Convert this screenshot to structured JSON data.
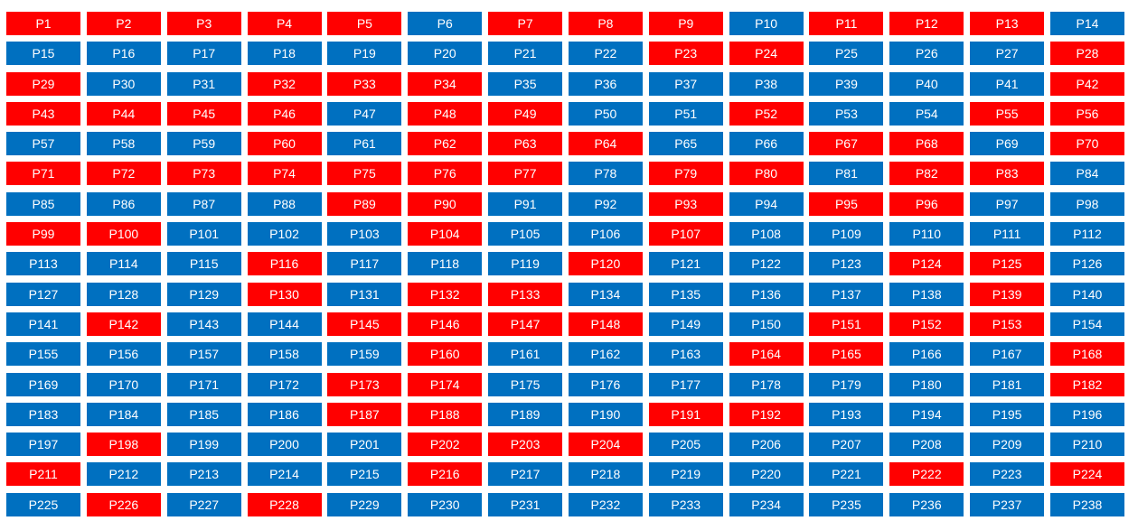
{
  "colors": {
    "red": "#ff0000",
    "blue": "#0070c0",
    "text": "#ffffff"
  },
  "cells": [
    {
      "label": "P1",
      "color": "red"
    },
    {
      "label": "P2",
      "color": "red"
    },
    {
      "label": "P3",
      "color": "red"
    },
    {
      "label": "P4",
      "color": "red"
    },
    {
      "label": "P5",
      "color": "red"
    },
    {
      "label": "P6",
      "color": "blue"
    },
    {
      "label": "P7",
      "color": "red"
    },
    {
      "label": "P8",
      "color": "red"
    },
    {
      "label": "P9",
      "color": "red"
    },
    {
      "label": "P10",
      "color": "blue"
    },
    {
      "label": "P11",
      "color": "red"
    },
    {
      "label": "P12",
      "color": "red"
    },
    {
      "label": "P13",
      "color": "red"
    },
    {
      "label": "P14",
      "color": "blue"
    },
    {
      "label": "P15",
      "color": "blue"
    },
    {
      "label": "P16",
      "color": "blue"
    },
    {
      "label": "P17",
      "color": "blue"
    },
    {
      "label": "P18",
      "color": "blue"
    },
    {
      "label": "P19",
      "color": "blue"
    },
    {
      "label": "P20",
      "color": "blue"
    },
    {
      "label": "P21",
      "color": "blue"
    },
    {
      "label": "P22",
      "color": "blue"
    },
    {
      "label": "P23",
      "color": "red"
    },
    {
      "label": "P24",
      "color": "red"
    },
    {
      "label": "P25",
      "color": "blue"
    },
    {
      "label": "P26",
      "color": "blue"
    },
    {
      "label": "P27",
      "color": "blue"
    },
    {
      "label": "P28",
      "color": "red"
    },
    {
      "label": "P29",
      "color": "red"
    },
    {
      "label": "P30",
      "color": "blue"
    },
    {
      "label": "P31",
      "color": "blue"
    },
    {
      "label": "P32",
      "color": "red"
    },
    {
      "label": "P33",
      "color": "red"
    },
    {
      "label": "P34",
      "color": "red"
    },
    {
      "label": "P35",
      "color": "blue"
    },
    {
      "label": "P36",
      "color": "blue"
    },
    {
      "label": "P37",
      "color": "blue"
    },
    {
      "label": "P38",
      "color": "blue"
    },
    {
      "label": "P39",
      "color": "blue"
    },
    {
      "label": "P40",
      "color": "blue"
    },
    {
      "label": "P41",
      "color": "blue"
    },
    {
      "label": "P42",
      "color": "red"
    },
    {
      "label": "P43",
      "color": "red"
    },
    {
      "label": "P44",
      "color": "red"
    },
    {
      "label": "P45",
      "color": "red"
    },
    {
      "label": "P46",
      "color": "red"
    },
    {
      "label": "P47",
      "color": "blue"
    },
    {
      "label": "P48",
      "color": "red"
    },
    {
      "label": "P49",
      "color": "red"
    },
    {
      "label": "P50",
      "color": "blue"
    },
    {
      "label": "P51",
      "color": "blue"
    },
    {
      "label": "P52",
      "color": "red"
    },
    {
      "label": "P53",
      "color": "blue"
    },
    {
      "label": "P54",
      "color": "blue"
    },
    {
      "label": "P55",
      "color": "red"
    },
    {
      "label": "P56",
      "color": "red"
    },
    {
      "label": "P57",
      "color": "blue"
    },
    {
      "label": "P58",
      "color": "blue"
    },
    {
      "label": "P59",
      "color": "blue"
    },
    {
      "label": "P60",
      "color": "red"
    },
    {
      "label": "P61",
      "color": "blue"
    },
    {
      "label": "P62",
      "color": "red"
    },
    {
      "label": "P63",
      "color": "red"
    },
    {
      "label": "P64",
      "color": "red"
    },
    {
      "label": "P65",
      "color": "blue"
    },
    {
      "label": "P66",
      "color": "blue"
    },
    {
      "label": "P67",
      "color": "red"
    },
    {
      "label": "P68",
      "color": "red"
    },
    {
      "label": "P69",
      "color": "blue"
    },
    {
      "label": "P70",
      "color": "red"
    },
    {
      "label": "P71",
      "color": "red"
    },
    {
      "label": "P72",
      "color": "red"
    },
    {
      "label": "P73",
      "color": "red"
    },
    {
      "label": "P74",
      "color": "red"
    },
    {
      "label": "P75",
      "color": "red"
    },
    {
      "label": "P76",
      "color": "red"
    },
    {
      "label": "P77",
      "color": "red"
    },
    {
      "label": "P78",
      "color": "blue"
    },
    {
      "label": "P79",
      "color": "red"
    },
    {
      "label": "P80",
      "color": "red"
    },
    {
      "label": "P81",
      "color": "blue"
    },
    {
      "label": "P82",
      "color": "red"
    },
    {
      "label": "P83",
      "color": "red"
    },
    {
      "label": "P84",
      "color": "blue"
    },
    {
      "label": "P85",
      "color": "blue"
    },
    {
      "label": "P86",
      "color": "blue"
    },
    {
      "label": "P87",
      "color": "blue"
    },
    {
      "label": "P88",
      "color": "blue"
    },
    {
      "label": "P89",
      "color": "red"
    },
    {
      "label": "P90",
      "color": "red"
    },
    {
      "label": "P91",
      "color": "blue"
    },
    {
      "label": "P92",
      "color": "blue"
    },
    {
      "label": "P93",
      "color": "red"
    },
    {
      "label": "P94",
      "color": "blue"
    },
    {
      "label": "P95",
      "color": "red"
    },
    {
      "label": "P96",
      "color": "red"
    },
    {
      "label": "P97",
      "color": "blue"
    },
    {
      "label": "P98",
      "color": "blue"
    },
    {
      "label": "P99",
      "color": "red"
    },
    {
      "label": "P100",
      "color": "red"
    },
    {
      "label": "P101",
      "color": "blue"
    },
    {
      "label": "P102",
      "color": "blue"
    },
    {
      "label": "P103",
      "color": "blue"
    },
    {
      "label": "P104",
      "color": "red"
    },
    {
      "label": "P105",
      "color": "blue"
    },
    {
      "label": "P106",
      "color": "blue"
    },
    {
      "label": "P107",
      "color": "red"
    },
    {
      "label": "P108",
      "color": "blue"
    },
    {
      "label": "P109",
      "color": "blue"
    },
    {
      "label": "P110",
      "color": "blue"
    },
    {
      "label": "P111",
      "color": "blue"
    },
    {
      "label": "P112",
      "color": "blue"
    },
    {
      "label": "P113",
      "color": "blue"
    },
    {
      "label": "P114",
      "color": "blue"
    },
    {
      "label": "P115",
      "color": "blue"
    },
    {
      "label": "P116",
      "color": "red"
    },
    {
      "label": "P117",
      "color": "blue"
    },
    {
      "label": "P118",
      "color": "blue"
    },
    {
      "label": "P119",
      "color": "blue"
    },
    {
      "label": "P120",
      "color": "red"
    },
    {
      "label": "P121",
      "color": "blue"
    },
    {
      "label": "P122",
      "color": "blue"
    },
    {
      "label": "P123",
      "color": "blue"
    },
    {
      "label": "P124",
      "color": "red"
    },
    {
      "label": "P125",
      "color": "red"
    },
    {
      "label": "P126",
      "color": "blue"
    },
    {
      "label": "P127",
      "color": "blue"
    },
    {
      "label": "P128",
      "color": "blue"
    },
    {
      "label": "P129",
      "color": "blue"
    },
    {
      "label": "P130",
      "color": "red"
    },
    {
      "label": "P131",
      "color": "blue"
    },
    {
      "label": "P132",
      "color": "red"
    },
    {
      "label": "P133",
      "color": "red"
    },
    {
      "label": "P134",
      "color": "blue"
    },
    {
      "label": "P135",
      "color": "blue"
    },
    {
      "label": "P136",
      "color": "blue"
    },
    {
      "label": "P137",
      "color": "blue"
    },
    {
      "label": "P138",
      "color": "blue"
    },
    {
      "label": "P139",
      "color": "red"
    },
    {
      "label": "P140",
      "color": "blue"
    },
    {
      "label": "P141",
      "color": "blue"
    },
    {
      "label": "P142",
      "color": "red"
    },
    {
      "label": "P143",
      "color": "blue"
    },
    {
      "label": "P144",
      "color": "blue"
    },
    {
      "label": "P145",
      "color": "red"
    },
    {
      "label": "P146",
      "color": "red"
    },
    {
      "label": "P147",
      "color": "red"
    },
    {
      "label": "P148",
      "color": "red"
    },
    {
      "label": "P149",
      "color": "blue"
    },
    {
      "label": "P150",
      "color": "blue"
    },
    {
      "label": "P151",
      "color": "red"
    },
    {
      "label": "P152",
      "color": "red"
    },
    {
      "label": "P153",
      "color": "red"
    },
    {
      "label": "P154",
      "color": "blue"
    },
    {
      "label": "P155",
      "color": "blue"
    },
    {
      "label": "P156",
      "color": "blue"
    },
    {
      "label": "P157",
      "color": "blue"
    },
    {
      "label": "P158",
      "color": "blue"
    },
    {
      "label": "P159",
      "color": "blue"
    },
    {
      "label": "P160",
      "color": "red"
    },
    {
      "label": "P161",
      "color": "blue"
    },
    {
      "label": "P162",
      "color": "blue"
    },
    {
      "label": "P163",
      "color": "blue"
    },
    {
      "label": "P164",
      "color": "red"
    },
    {
      "label": "P165",
      "color": "red"
    },
    {
      "label": "P166",
      "color": "blue"
    },
    {
      "label": "P167",
      "color": "blue"
    },
    {
      "label": "P168",
      "color": "red"
    },
    {
      "label": "P169",
      "color": "blue"
    },
    {
      "label": "P170",
      "color": "blue"
    },
    {
      "label": "P171",
      "color": "blue"
    },
    {
      "label": "P172",
      "color": "blue"
    },
    {
      "label": "P173",
      "color": "red"
    },
    {
      "label": "P174",
      "color": "red"
    },
    {
      "label": "P175",
      "color": "blue"
    },
    {
      "label": "P176",
      "color": "blue"
    },
    {
      "label": "P177",
      "color": "blue"
    },
    {
      "label": "P178",
      "color": "blue"
    },
    {
      "label": "P179",
      "color": "blue"
    },
    {
      "label": "P180",
      "color": "blue"
    },
    {
      "label": "P181",
      "color": "blue"
    },
    {
      "label": "P182",
      "color": "red"
    },
    {
      "label": "P183",
      "color": "blue"
    },
    {
      "label": "P184",
      "color": "blue"
    },
    {
      "label": "P185",
      "color": "blue"
    },
    {
      "label": "P186",
      "color": "blue"
    },
    {
      "label": "P187",
      "color": "red"
    },
    {
      "label": "P188",
      "color": "red"
    },
    {
      "label": "P189",
      "color": "blue"
    },
    {
      "label": "P190",
      "color": "blue"
    },
    {
      "label": "P191",
      "color": "red"
    },
    {
      "label": "P192",
      "color": "red"
    },
    {
      "label": "P193",
      "color": "blue"
    },
    {
      "label": "P194",
      "color": "blue"
    },
    {
      "label": "P195",
      "color": "blue"
    },
    {
      "label": "P196",
      "color": "blue"
    },
    {
      "label": "P197",
      "color": "blue"
    },
    {
      "label": "P198",
      "color": "red"
    },
    {
      "label": "P199",
      "color": "blue"
    },
    {
      "label": "P200",
      "color": "blue"
    },
    {
      "label": "P201",
      "color": "blue"
    },
    {
      "label": "P202",
      "color": "red"
    },
    {
      "label": "P203",
      "color": "red"
    },
    {
      "label": "P204",
      "color": "red"
    },
    {
      "label": "P205",
      "color": "blue"
    },
    {
      "label": "P206",
      "color": "blue"
    },
    {
      "label": "P207",
      "color": "blue"
    },
    {
      "label": "P208",
      "color": "blue"
    },
    {
      "label": "P209",
      "color": "blue"
    },
    {
      "label": "P210",
      "color": "blue"
    },
    {
      "label": "P211",
      "color": "red"
    },
    {
      "label": "P212",
      "color": "blue"
    },
    {
      "label": "P213",
      "color": "blue"
    },
    {
      "label": "P214",
      "color": "blue"
    },
    {
      "label": "P215",
      "color": "blue"
    },
    {
      "label": "P216",
      "color": "red"
    },
    {
      "label": "P217",
      "color": "blue"
    },
    {
      "label": "P218",
      "color": "blue"
    },
    {
      "label": "P219",
      "color": "blue"
    },
    {
      "label": "P220",
      "color": "blue"
    },
    {
      "label": "P221",
      "color": "blue"
    },
    {
      "label": "P222",
      "color": "red"
    },
    {
      "label": "P223",
      "color": "blue"
    },
    {
      "label": "P224",
      "color": "red"
    },
    {
      "label": "P225",
      "color": "blue"
    },
    {
      "label": "P226",
      "color": "red"
    },
    {
      "label": "P227",
      "color": "blue"
    },
    {
      "label": "P228",
      "color": "red"
    },
    {
      "label": "P229",
      "color": "blue"
    },
    {
      "label": "P230",
      "color": "blue"
    },
    {
      "label": "P231",
      "color": "blue"
    },
    {
      "label": "P232",
      "color": "blue"
    },
    {
      "label": "P233",
      "color": "blue"
    },
    {
      "label": "P234",
      "color": "blue"
    },
    {
      "label": "P235",
      "color": "blue"
    },
    {
      "label": "P236",
      "color": "blue"
    },
    {
      "label": "P237",
      "color": "blue"
    },
    {
      "label": "P238",
      "color": "blue"
    }
  ]
}
